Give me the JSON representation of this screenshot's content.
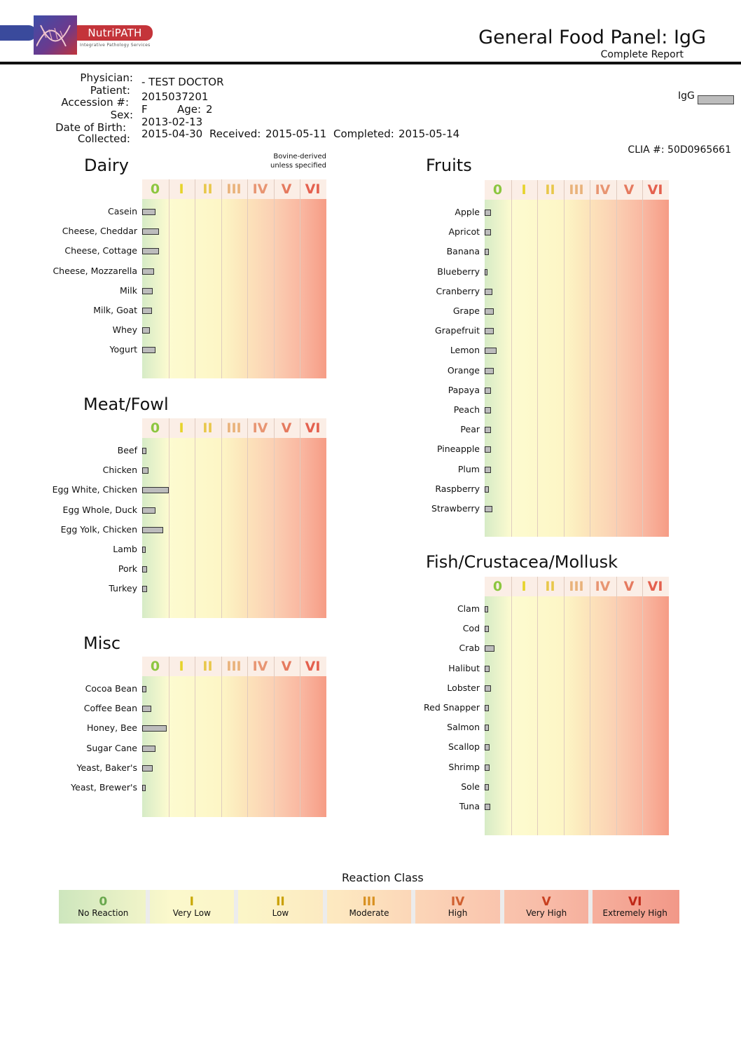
{
  "branding": {
    "logo_name": "NutriPATH",
    "logo_tagline": "Integrative Pathology Services"
  },
  "report": {
    "title": "General Food Panel: IgG",
    "subtitle": "Complete Report"
  },
  "patient_info": {
    "labels": {
      "physician": "Physician:",
      "patient": "Patient:",
      "accession": "Accession #:",
      "sex": "Sex:",
      "dob": "Date of Birth:",
      "collected": "Collected:"
    },
    "physician": "- TEST DOCTOR",
    "patient": "",
    "accession": "2015037201",
    "sex": "F",
    "age_label": "Age:",
    "age": "2",
    "dob": "2013-02-13",
    "collected": "2015-04-30",
    "received_label": "Received:",
    "received": "2015-05-11",
    "completed_label": "Completed:",
    "completed": "2015-05-14"
  },
  "igg_legend_label": "IgG",
  "clia": "CLIA #: 50D0965661",
  "class_headers": [
    "0",
    "I",
    "II",
    "III",
    "IV",
    "V",
    "VI"
  ],
  "class_colors": [
    "#8cc63f",
    "#e6d32a",
    "#e8c74a",
    "#e9b27a",
    "#e89572",
    "#e57a5f",
    "#e4604e"
  ],
  "scale_note": "Bovine-derived unless specified",
  "sections": {
    "dairy": {
      "title": "Dairy",
      "items": [
        {
          "name": "Casein",
          "value": 0.5
        },
        {
          "name": "Cheese, Cheddar",
          "value": 0.65
        },
        {
          "name": "Cheese, Cottage",
          "value": 0.65
        },
        {
          "name": "Cheese, Mozzarella",
          "value": 0.45
        },
        {
          "name": "Milk",
          "value": 0.4
        },
        {
          "name": "Milk, Goat",
          "value": 0.38
        },
        {
          "name": "Whey",
          "value": 0.3
        },
        {
          "name": "Yogurt",
          "value": 0.5
        }
      ]
    },
    "meat": {
      "title": "Meat/Fowl",
      "items": [
        {
          "name": "Beef",
          "value": 0.15
        },
        {
          "name": "Chicken",
          "value": 0.25
        },
        {
          "name": "Egg White, Chicken",
          "value": 1.0
        },
        {
          "name": "Egg Whole, Duck",
          "value": 0.5
        },
        {
          "name": "Egg Yolk, Chicken",
          "value": 0.8
        },
        {
          "name": "Lamb",
          "value": 0.12
        },
        {
          "name": "Pork",
          "value": 0.18
        },
        {
          "name": "Turkey",
          "value": 0.18
        }
      ]
    },
    "misc": {
      "title": "Misc",
      "items": [
        {
          "name": "Cocoa Bean",
          "value": 0.15
        },
        {
          "name": "Coffee Bean",
          "value": 0.35
        },
        {
          "name": "Honey, Bee",
          "value": 0.92
        },
        {
          "name": "Sugar Cane",
          "value": 0.5
        },
        {
          "name": "Yeast, Baker's",
          "value": 0.4
        },
        {
          "name": "Yeast, Brewer's",
          "value": 0.12
        }
      ]
    },
    "fruits": {
      "title": "Fruits",
      "items": [
        {
          "name": "Apple",
          "value": 0.25
        },
        {
          "name": "Apricot",
          "value": 0.25
        },
        {
          "name": "Banana",
          "value": 0.15
        },
        {
          "name": "Blueberry",
          "value": 0.1
        },
        {
          "name": "Cranberry",
          "value": 0.28
        },
        {
          "name": "Grape",
          "value": 0.35
        },
        {
          "name": "Grapefruit",
          "value": 0.35
        },
        {
          "name": "Lemon",
          "value": 0.45
        },
        {
          "name": "Orange",
          "value": 0.35
        },
        {
          "name": "Papaya",
          "value": 0.25
        },
        {
          "name": "Peach",
          "value": 0.25
        },
        {
          "name": "Pear",
          "value": 0.25
        },
        {
          "name": "Pineapple",
          "value": 0.25
        },
        {
          "name": "Plum",
          "value": 0.25
        },
        {
          "name": "Raspberry",
          "value": 0.15
        },
        {
          "name": "Strawberry",
          "value": 0.3
        }
      ]
    },
    "fish": {
      "title": "Fish/Crustacea/Mollusk",
      "items": [
        {
          "name": "Clam",
          "value": 0.12
        },
        {
          "name": "Cod",
          "value": 0.15
        },
        {
          "name": "Crab",
          "value": 0.38
        },
        {
          "name": "Halibut",
          "value": 0.18
        },
        {
          "name": "Lobster",
          "value": 0.25
        },
        {
          "name": "Red Snapper",
          "value": 0.15
        },
        {
          "name": "Salmon",
          "value": 0.15
        },
        {
          "name": "Scallop",
          "value": 0.18
        },
        {
          "name": "Shrimp",
          "value": 0.18
        },
        {
          "name": "Sole",
          "value": 0.15
        },
        {
          "name": "Tuna",
          "value": 0.22
        }
      ]
    }
  },
  "legend": {
    "title": "Reaction Class",
    "classes": [
      {
        "num": "0",
        "label": "No Reaction",
        "color": "#6aa84f"
      },
      {
        "num": "I",
        "label": "Very Low",
        "color": "#c9a800"
      },
      {
        "num": "II",
        "label": "Low",
        "color": "#c9a000"
      },
      {
        "num": "III",
        "label": "Moderate",
        "color": "#d89020"
      },
      {
        "num": "IV",
        "label": "High",
        "color": "#d06030"
      },
      {
        "num": "V",
        "label": "Very High",
        "color": "#c84020"
      },
      {
        "num": "VI",
        "label": "Extremely High",
        "color": "#c02818"
      }
    ]
  }
}
